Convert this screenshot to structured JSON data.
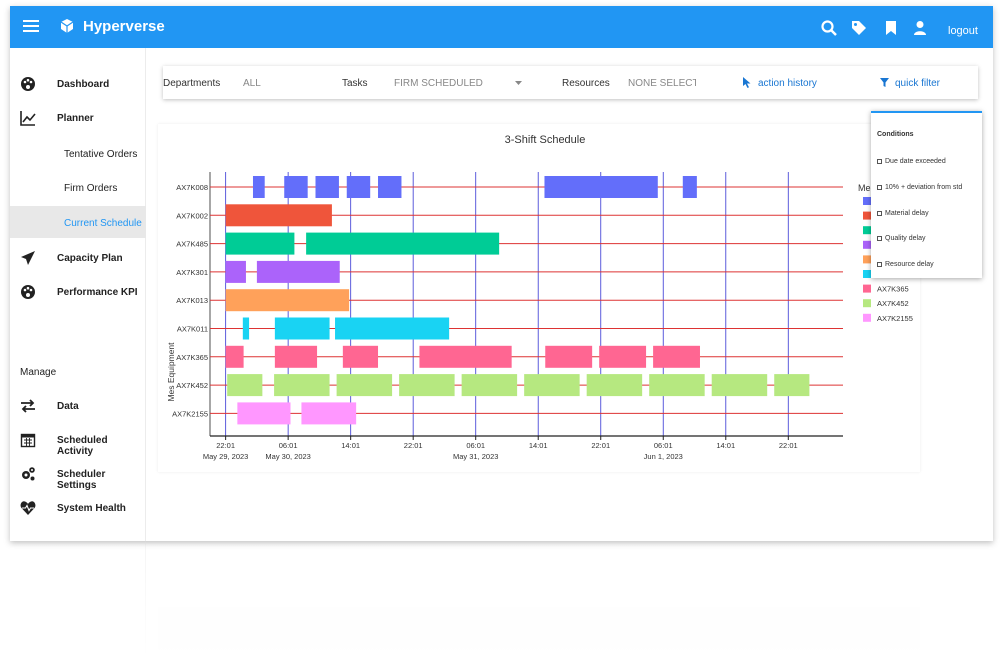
{
  "app": {
    "brand": "Hyperverse",
    "logout_label": "logout"
  },
  "icons": {
    "menu": "menu-icon",
    "logo": "cube-icon",
    "search": "search-icon",
    "tags": "tags-icon",
    "bookmark": "bookmark-icon",
    "user": "user-icon"
  },
  "colors": {
    "topbar": "#2196f3",
    "accent": "#2196f3",
    "link": "#1976d2",
    "grid_line": "#dd3333",
    "day_line": "#4a4ad8"
  },
  "sidebar": {
    "items": [
      {
        "label": "Dashboard",
        "icon": "palette-icon"
      },
      {
        "label": "Planner",
        "icon": "chart-line-icon"
      },
      {
        "label": "Tentative Orders"
      },
      {
        "label": "Firm Orders"
      },
      {
        "label": "Current Schedule",
        "active": true
      },
      {
        "label": "Capacity Plan",
        "icon": "paper-plane-icon"
      },
      {
        "label": "Performance KPI",
        "icon": "palette-icon"
      }
    ],
    "manage_label": "Manage",
    "manage_items": [
      {
        "label": "Data",
        "icon": "swap-arrows-icon"
      },
      {
        "label": "Scheduled Activity",
        "icon": "calendar-icon"
      },
      {
        "label": "Scheduler Settings",
        "icon": "gears-icon"
      },
      {
        "label": "System Health",
        "icon": "heartbeat-icon"
      }
    ]
  },
  "filters": {
    "departments_label": "Departments",
    "departments_value": "ALL",
    "tasks_label": "Tasks",
    "tasks_value": "FIRM SCHEDULED",
    "resources_label": "Resources",
    "resources_value": "NONE SELECTE",
    "action_history_label": "action history",
    "quick_filter_label": "quick filter"
  },
  "conditions": {
    "title": "Conditions",
    "options": [
      "Due date exceeded",
      "10% + deviation from std",
      "Material delay",
      "Quality delay",
      "Resource delay"
    ]
  },
  "chart_data": {
    "type": "gantt",
    "title": "3-Shift Schedule",
    "ylabel": "Mes Equipment",
    "legend_title_visible": "Me",
    "legend_entries_visible": [
      "AX7K365",
      "AX7K452",
      "AX7K2155"
    ],
    "x_range_hours": [
      -2,
      59.5
    ],
    "x_origin": "May 29, 2023 00:00",
    "x_ticks": [
      {
        "h": 22,
        "label": "22:01",
        "date": "May 29, 2023"
      },
      {
        "h": 30,
        "label": "06:01",
        "date": "May 30, 2023"
      },
      {
        "h": 38,
        "label": "14:01",
        "date": ""
      },
      {
        "h": 46,
        "label": "22:01",
        "date": ""
      },
      {
        "h": 54,
        "label": "06:01",
        "date": "May 31, 2023"
      },
      {
        "h": 62,
        "label": "14:01",
        "date": ""
      },
      {
        "h": 70,
        "label": "22:01",
        "date": ""
      },
      {
        "h": 78,
        "label": "06:01",
        "date": "Jun 1, 2023"
      },
      {
        "h": 86,
        "label": "14:01",
        "date": ""
      },
      {
        "h": 94,
        "label": "22:01",
        "date": ""
      }
    ],
    "rows": [
      {
        "name": "AX7K008",
        "color": "#636efa",
        "tasks": [
          [
            25.5,
            27
          ],
          [
            29.5,
            32.5
          ],
          [
            33.5,
            36.5
          ],
          [
            37.5,
            40.5
          ],
          [
            41.5,
            44.5
          ],
          [
            62.8,
            77.3
          ],
          [
            80.5,
            82.3
          ]
        ]
      },
      {
        "name": "AX7K002",
        "color": "#ef553b",
        "tasks": [
          [
            22,
            35.6
          ]
        ]
      },
      {
        "name": "AX7K485",
        "color": "#00cc96",
        "tasks": [
          [
            22,
            30.8
          ],
          [
            32.3,
            57
          ]
        ]
      },
      {
        "name": "AX7K301",
        "color": "#ab63fa",
        "tasks": [
          [
            22,
            24.6
          ],
          [
            26,
            36.6
          ]
        ]
      },
      {
        "name": "AX7K013",
        "color": "#ffa15a",
        "tasks": [
          [
            22,
            37.8
          ]
        ]
      },
      {
        "name": "AX7K011",
        "color": "#19d3f3",
        "tasks": [
          [
            24.2,
            25
          ],
          [
            28.3,
            35.3
          ],
          [
            36,
            50.6
          ]
        ]
      },
      {
        "name": "AX7K365",
        "color": "#ff6692",
        "tasks": [
          [
            22,
            24.3
          ],
          [
            28.3,
            33.7
          ],
          [
            37,
            41.5
          ],
          [
            46.8,
            58.6
          ],
          [
            62.9,
            68.9
          ],
          [
            69.8,
            75.8
          ],
          [
            76.7,
            82.7
          ]
        ]
      },
      {
        "name": "AX7K452",
        "color": "#b6e880",
        "tasks": [
          [
            22.2,
            26.7
          ],
          [
            28.2,
            35.3
          ],
          [
            36.2,
            43.3
          ],
          [
            44.2,
            51.3
          ],
          [
            52.2,
            59.3
          ],
          [
            60.2,
            67.3
          ],
          [
            68.2,
            75.3
          ],
          [
            76.2,
            83.3
          ],
          [
            84.2,
            91.3
          ],
          [
            92.2,
            96.7
          ]
        ]
      },
      {
        "name": "AX7K2155",
        "color": "#ff97ff",
        "tasks": [
          [
            23.5,
            30.3
          ],
          [
            31.7,
            38.7
          ]
        ]
      }
    ]
  }
}
